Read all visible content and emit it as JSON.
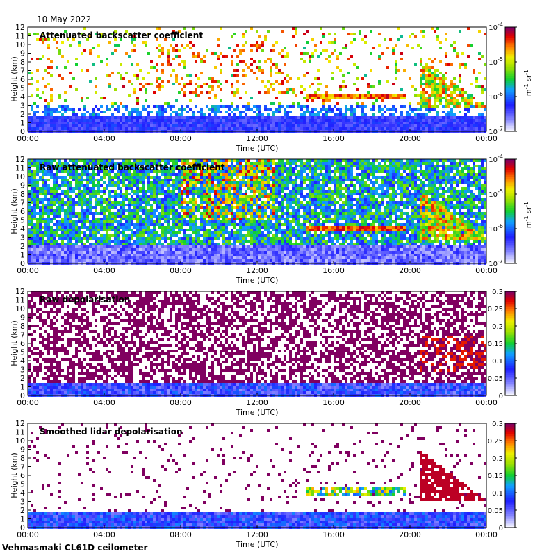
{
  "header": {
    "date": "10 May 2022"
  },
  "footer": {
    "station": "Vehmasmaki CL61D ceilometer"
  },
  "colorbar_colors": [
    "#ffffff",
    "#1f1fff",
    "#10c0ff",
    "#10d030",
    "#e0e000",
    "#ff8000",
    "#d00000",
    "#800060"
  ],
  "chart_data": [
    {
      "type": "heatmap",
      "title": "Attenuated backscatter coefficient",
      "xlabel": "Time (UTC)",
      "ylabel": "Height (km)",
      "x_ticks": [
        "00:00",
        "04:00",
        "08:00",
        "12:00",
        "16:00",
        "20:00",
        "00:00"
      ],
      "y_ticks": [
        "0",
        "1",
        "2",
        "3",
        "4",
        "5",
        "6",
        "7",
        "8",
        "9",
        "10",
        "11",
        "12"
      ],
      "xlim_hours": [
        0,
        24
      ],
      "ylim_km": [
        0,
        12
      ],
      "colorbar": {
        "scale": "log",
        "range": [
          1e-07,
          0.0001
        ],
        "ticks": [
          "10-7",
          "10-6",
          "10-5",
          "10-4"
        ],
        "label": "m-1 sr-1"
      },
      "features": [
        {
          "name": "boundary layer aerosol",
          "t": [
            0,
            24
          ],
          "h": [
            0,
            1.8
          ]
        },
        {
          "name": "cloud layer",
          "t": [
            14.5,
            19.8
          ],
          "h": [
            3.7,
            4.2
          ]
        },
        {
          "name": "cloud layer",
          "t": [
            20.5,
            24
          ],
          "h": [
            2.5,
            8.5
          ]
        },
        {
          "name": "precipitation streaks",
          "t": [
            6.5,
            13.5
          ],
          "h": [
            4,
            10
          ]
        }
      ]
    },
    {
      "type": "heatmap",
      "title": "Raw attenuated backscatter coefficient",
      "xlabel": "Time (UTC)",
      "ylabel": "Height (km)",
      "x_ticks": [
        "00:00",
        "04:00",
        "08:00",
        "12:00",
        "16:00",
        "20:00",
        "00:00"
      ],
      "y_ticks": [
        "0",
        "1",
        "2",
        "3",
        "4",
        "5",
        "6",
        "7",
        "8",
        "9",
        "10",
        "11",
        "12"
      ],
      "xlim_hours": [
        0,
        24
      ],
      "ylim_km": [
        0,
        12
      ],
      "colorbar": {
        "scale": "log",
        "range": [
          1e-07,
          0.0001
        ],
        "ticks": [
          "10-7",
          "10-6",
          "10-5",
          "10-4"
        ],
        "label": "m-1 sr-1"
      },
      "features": [
        {
          "name": "noisy background",
          "t": [
            0,
            24
          ],
          "h": [
            2,
            12
          ]
        },
        {
          "name": "cloud layer",
          "t": [
            14.5,
            19.8
          ],
          "h": [
            3.7,
            4.2
          ]
        },
        {
          "name": "cloud layer",
          "t": [
            20.5,
            24
          ],
          "h": [
            2.5,
            8.5
          ]
        }
      ]
    },
    {
      "type": "heatmap",
      "title": "Raw depolarisation",
      "xlabel": "Time (UTC)",
      "ylabel": "Height (km)",
      "x_ticks": [
        "00:00",
        "04:00",
        "08:00",
        "12:00",
        "16:00",
        "20:00",
        "00:00"
      ],
      "y_ticks": [
        "0",
        "1",
        "2",
        "3",
        "4",
        "5",
        "6",
        "7",
        "8",
        "9",
        "10",
        "11",
        "12"
      ],
      "xlim_hours": [
        0,
        24
      ],
      "ylim_km": [
        0,
        12
      ],
      "colorbar": {
        "scale": "linear",
        "range": [
          0,
          0.3
        ],
        "ticks": [
          "0",
          "0.05",
          "0.1",
          "0.15",
          "0.2",
          "0.25",
          "0.3"
        ],
        "label": ""
      },
      "features": [
        {
          "name": "noise (high depolarisation)",
          "t": [
            0,
            24
          ],
          "h": [
            1.5,
            12
          ]
        },
        {
          "name": "low depolarisation layer",
          "t": [
            0,
            24
          ],
          "h": [
            0,
            1.5
          ]
        }
      ]
    },
    {
      "type": "heatmap",
      "title": "Smoothed lidar depolarisation",
      "xlabel": "Time (UTC)",
      "ylabel": "Height (km)",
      "x_ticks": [
        "00:00",
        "04:00",
        "08:00",
        "12:00",
        "16:00",
        "20:00",
        "00:00"
      ],
      "y_ticks": [
        "0",
        "1",
        "2",
        "3",
        "4",
        "5",
        "6",
        "7",
        "8",
        "9",
        "10",
        "11",
        "12"
      ],
      "xlim_hours": [
        0,
        24
      ],
      "ylim_km": [
        0,
        12
      ],
      "colorbar": {
        "scale": "linear",
        "range": [
          0,
          0.3
        ],
        "ticks": [
          "0",
          "0.05",
          "0.1",
          "0.15",
          "0.2",
          "0.25",
          "0.3"
        ],
        "label": ""
      },
      "features": [
        {
          "name": "boundary layer aerosol",
          "t": [
            0,
            24
          ],
          "h": [
            0,
            1.8
          ]
        },
        {
          "name": "ice cloud",
          "t": [
            20.5,
            24
          ],
          "h": [
            3,
            9
          ]
        },
        {
          "name": "mid-level cloud",
          "t": [
            14.5,
            19.8
          ],
          "h": [
            3.8,
            4.6
          ]
        }
      ]
    }
  ]
}
